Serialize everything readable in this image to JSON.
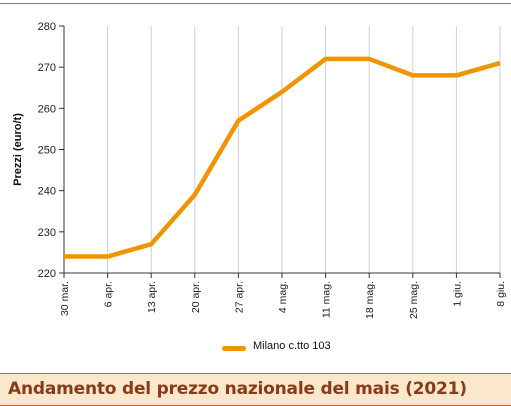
{
  "caption": {
    "title": "Andamento del prezzo nazionale del mais (2021)"
  },
  "colors": {
    "series": "#f29400",
    "caption_text": "#8a3a1a",
    "caption_bg": "#fbe8cc",
    "rule": "#c8622a",
    "grid": "#cfcfcf"
  },
  "chart_data": {
    "type": "line",
    "title": "",
    "xlabel": "",
    "ylabel": "Prezzi (euro/t)",
    "ylim": [
      220,
      280
    ],
    "yticks": [
      220,
      230,
      240,
      250,
      260,
      270,
      280
    ],
    "grid": "vertical",
    "legend": "bottom-center",
    "categories": [
      "30 mar.",
      "6 apr.",
      "13 apr.",
      "20 apr.",
      "27 apr.",
      "4 mag.",
      "11 mag.",
      "18 mag.",
      "25 mag.",
      "1 giu.",
      "8 giu."
    ],
    "series": [
      {
        "name": "Milano  c.tto 103",
        "values": [
          224,
          224,
          227,
          239,
          257,
          264,
          272,
          272,
          268,
          268,
          271
        ]
      }
    ]
  }
}
